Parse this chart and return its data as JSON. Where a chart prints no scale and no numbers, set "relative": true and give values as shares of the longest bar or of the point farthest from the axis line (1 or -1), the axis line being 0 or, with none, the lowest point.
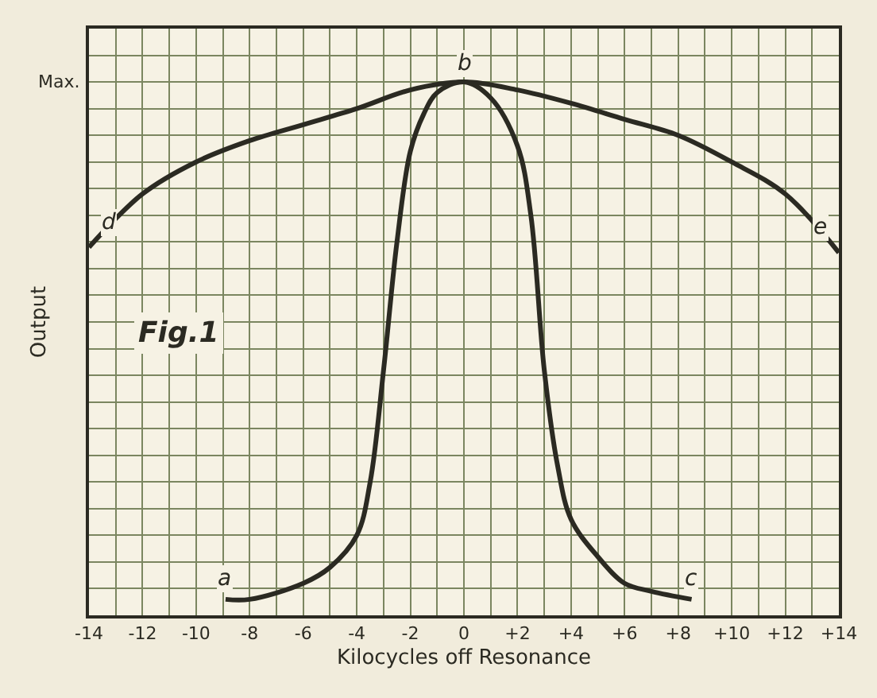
{
  "chart_data": {
    "type": "line",
    "relative": true,
    "xlabel": "Kilocycles off Resonance",
    "ylabel": "Output",
    "xlim": [
      -14,
      14
    ],
    "xticks": [
      {
        "value": -14,
        "label": "-14"
      },
      {
        "value": -12,
        "label": "-12"
      },
      {
        "value": -10,
        "label": "-10"
      },
      {
        "value": -8,
        "label": "-8"
      },
      {
        "value": -6,
        "label": "-6"
      },
      {
        "value": -4,
        "label": "-4"
      },
      {
        "value": -2,
        "label": "-2"
      },
      0,
      {
        "value": 2,
        "label": "+2"
      },
      {
        "value": 4,
        "label": "+4"
      },
      {
        "value": 6,
        "label": "+6"
      },
      {
        "value": 8,
        "label": "+8"
      },
      {
        "value": 10,
        "label": "+10"
      },
      {
        "value": 12,
        "label": "+12"
      },
      {
        "value": 14,
        "label": "+14"
      }
    ],
    "grid": true,
    "marker": "none",
    "line_style": "solid",
    "series": [
      {
        "color": "#2b2a22",
        "x": [
          -14,
          -12,
          -10,
          -8,
          -6,
          -4,
          -2,
          0,
          2,
          4,
          6,
          8,
          10,
          12,
          14
        ],
        "values": [
          0.69,
          0.79,
          0.85,
          0.89,
          0.92,
          0.95,
          0.985,
          1,
          0.985,
          0.96,
          0.93,
          0.9,
          0.85,
          0.79,
          0.68
        ]
      },
      {
        "color": "#2b2a22",
        "x": [
          -8.9,
          -8,
          -6,
          -5,
          -4,
          -3.5,
          -3,
          -2.5,
          -2,
          -1.5,
          -1,
          0,
          1,
          2,
          2.5,
          3,
          3.5,
          4,
          5,
          6,
          7,
          8.5
        ],
        "values": [
          0.03,
          0.03,
          0.06,
          0.09,
          0.15,
          0.25,
          0.46,
          0.7,
          0.87,
          0.94,
          0.98,
          1,
          0.97,
          0.88,
          0.75,
          0.46,
          0.28,
          0.18,
          0.11,
          0.06,
          0.045,
          0.03
        ]
      }
    ],
    "annotations": [
      "Max.",
      {
        "text": "b",
        "x": 0,
        "y": 1
      },
      {
        "text": "d",
        "x": -14,
        "y": 0.69
      },
      {
        "text": "e",
        "x": 14,
        "y": 0.68
      },
      {
        "text": "a",
        "x": -8.9,
        "y": 0.03
      },
      {
        "text": "c",
        "x": 8.5,
        "y": 0.03
      },
      "Fig.1"
    ]
  }
}
